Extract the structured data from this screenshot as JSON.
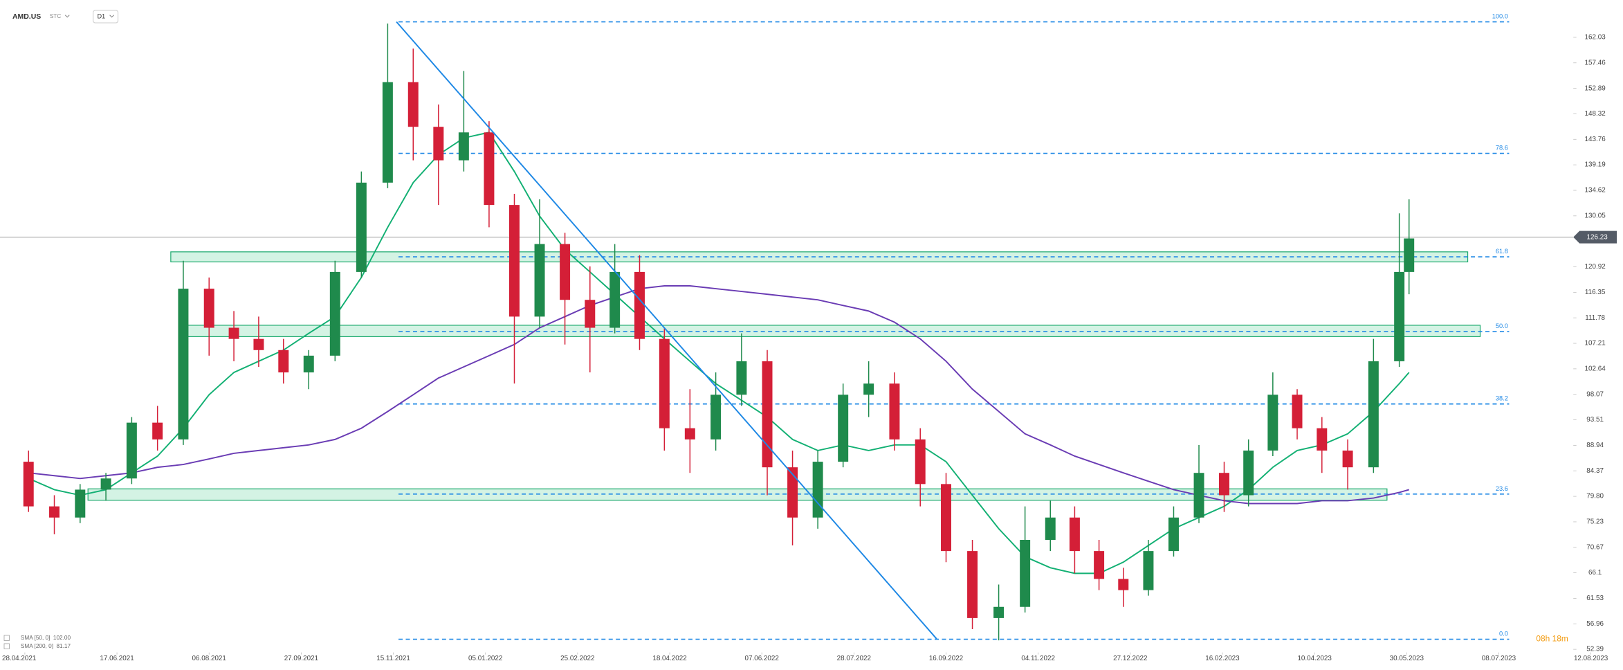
{
  "chart_data": {
    "type": "candlestick",
    "symbol": "AMD.US",
    "market": "STC",
    "interval": "D1",
    "countdown": "08h 18m",
    "last_price": 126.23,
    "ylim": [
      51.83,
      168.71
    ],
    "yticks": [
      162.03,
      157.46,
      152.89,
      148.32,
      143.76,
      139.19,
      134.62,
      130.05,
      120.92,
      116.35,
      111.78,
      107.21,
      102.64,
      98.07,
      93.51,
      88.94,
      84.37,
      {
        "value": 79.8,
        "label": "79.80"
      },
      75.23,
      70.67,
      66.1,
      61.53,
      56.96,
      52.39
    ],
    "xticks": [
      "28.04.2021",
      "17.06.2021",
      "06.08.2021",
      "27.09.2021",
      "15.11.2021",
      "05.01.2022",
      "25.02.2022",
      "18.04.2022",
      "07.06.2022",
      "28.07.2022",
      "16.09.2022",
      "04.11.2022",
      "27.12.2022",
      "16.02.2023",
      "10.04.2023",
      "30.05.2023",
      "08.07.2023",
      "12.08.2023"
    ],
    "up_color": "#1f8a4c",
    "down_color": "#d41f37",
    "x": [
      "30.04.2021",
      "14.05.2021",
      "28.05.2021",
      "11.06.2021",
      "25.06.2021",
      "09.07.2021",
      "23.07.2021",
      "06.08.2021",
      "20.08.2021",
      "03.09.2021",
      "17.09.2021",
      "01.10.2021",
      "15.10.2021",
      "29.10.2021",
      "12.11.2021",
      "26.11.2021",
      "10.12.2021",
      "24.12.2021",
      "07.01.2022",
      "21.01.2022",
      "04.02.2022",
      "18.02.2022",
      "04.03.2022",
      "18.03.2022",
      "01.04.2022",
      "15.04.2022",
      "29.04.2022",
      "13.05.2022",
      "27.05.2022",
      "10.06.2022",
      "24.06.2022",
      "08.07.2022",
      "22.07.2022",
      "05.08.2022",
      "19.08.2022",
      "02.09.2022",
      "16.09.2022",
      "30.09.2022",
      "14.10.2022",
      "28.10.2022",
      "11.11.2022",
      "25.11.2022",
      "09.12.2022",
      "23.12.2022",
      "06.01.2023",
      "20.01.2023",
      "03.02.2023",
      "17.02.2023",
      "03.03.2023",
      "17.03.2023",
      "31.03.2023",
      "14.04.2023",
      "28.04.2023",
      "12.05.2023",
      "26.05.2023",
      "31.05.2023"
    ],
    "open": [
      86,
      78,
      76,
      81,
      83,
      93,
      90,
      117,
      110,
      108,
      106,
      102,
      105,
      120,
      136,
      154,
      146,
      140,
      145,
      132,
      112,
      125,
      115,
      110,
      120,
      108,
      92,
      90,
      98,
      104,
      85,
      76,
      86,
      98,
      100,
      90,
      82,
      70,
      58,
      60,
      72,
      76,
      70,
      65,
      63,
      70,
      76,
      84,
      80,
      88,
      98,
      92,
      88,
      85,
      104,
      120
    ],
    "high": [
      88,
      80,
      82,
      84,
      94,
      96,
      122,
      119,
      113,
      112,
      108,
      106,
      122,
      138,
      164.5,
      160,
      150,
      156,
      147,
      134,
      133,
      127,
      121,
      125,
      123,
      110,
      99,
      102,
      109,
      106,
      88,
      88,
      100,
      104,
      102,
      92,
      84,
      72,
      64,
      78,
      79,
      78,
      72,
      67,
      72,
      78,
      89,
      86,
      90,
      102,
      99,
      94,
      90,
      108,
      130.5,
      133
    ],
    "low": [
      77,
      73,
      75,
      79,
      82,
      88,
      89,
      105,
      104,
      103,
      100,
      99,
      104,
      119,
      135,
      140,
      132,
      138,
      128,
      100,
      110,
      107,
      102,
      109,
      106,
      88,
      84,
      88,
      96,
      80,
      71,
      74,
      85,
      94,
      88,
      78,
      68,
      56,
      54,
      59,
      70,
      66,
      63,
      60,
      62,
      69,
      75,
      77,
      78,
      87,
      90,
      84,
      81,
      84,
      103,
      116
    ],
    "close": [
      78,
      76,
      81,
      83,
      93,
      90,
      117,
      110,
      108,
      106,
      102,
      105,
      120,
      136,
      154,
      146,
      140,
      145,
      132,
      112,
      125,
      115,
      110,
      120,
      108,
      92,
      90,
      98,
      104,
      85,
      76,
      86,
      98,
      100,
      90,
      82,
      70,
      58,
      60,
      72,
      76,
      70,
      65,
      63,
      70,
      76,
      84,
      80,
      88,
      98,
      92,
      88,
      85,
      104,
      120,
      126
    ],
    "series": [
      {
        "name": "SMA [50, 0]",
        "legend_value": "102.00",
        "color": "#12b073",
        "values": [
          83,
          81,
          80,
          81,
          84,
          87,
          92,
          98,
          102,
          104,
          106,
          109,
          112,
          119,
          128,
          136,
          141,
          144,
          145,
          138,
          130,
          124,
          120,
          116,
          112,
          108,
          104,
          100,
          97,
          94,
          90,
          88,
          89,
          88,
          89,
          89,
          86,
          80,
          74,
          69,
          67,
          66,
          66,
          68,
          71,
          74,
          76,
          78,
          81,
          85,
          88,
          89,
          91,
          95,
          100,
          102
        ]
      },
      {
        "name": "SMA [200, 0]",
        "legend_value": "81.17",
        "color": "#6a3cb4",
        "values": [
          84,
          83.5,
          83,
          83.5,
          84,
          85,
          85.5,
          86.5,
          87.5,
          88,
          88.5,
          89,
          90,
          92,
          95,
          98,
          101,
          103,
          105,
          107,
          110,
          112,
          114,
          115.5,
          117,
          117.5,
          117.5,
          117,
          116.5,
          116,
          115.5,
          115,
          114,
          113,
          111,
          108,
          104,
          99,
          95,
          91,
          89,
          87,
          85.5,
          84,
          82.5,
          81,
          80,
          79,
          78.5,
          78.5,
          78.5,
          79,
          79,
          79.5,
          80.5,
          81
        ]
      }
    ],
    "fib_levels": [
      {
        "label": "100.0",
        "price": 164.8
      },
      {
        "label": "78.6",
        "price": 141.25
      },
      {
        "label": "61.8",
        "price": 122.7
      },
      {
        "label": "50.0",
        "price": 109.3
      },
      {
        "label": "38.2",
        "price": 96.35
      },
      {
        "label": "23.6",
        "price": 80.2
      },
      {
        "label": "0.0",
        "price": 54.2
      }
    ],
    "zones": [
      {
        "low": 121.8,
        "high": 123.6
      },
      {
        "low": 108.4,
        "high": 110.45
      },
      {
        "low": 79.1,
        "high": 81.14
      }
    ]
  }
}
